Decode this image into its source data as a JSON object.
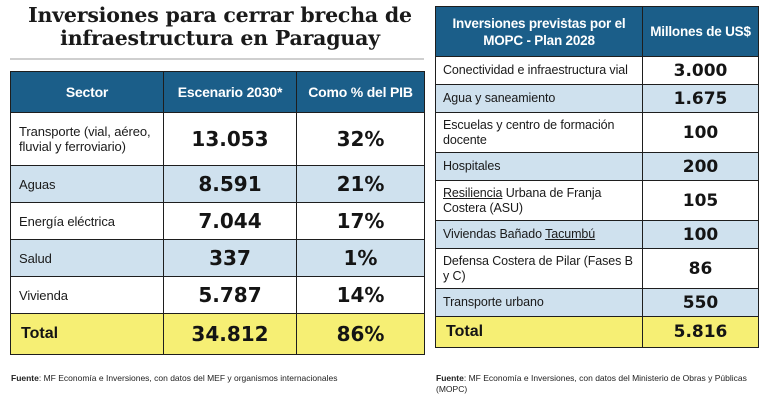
{
  "left": {
    "title": "Inversiones para cerrar brecha de infraestructura en Paraguay",
    "headers": [
      "Sector",
      "Escenario 2030*",
      "Como % del PIB"
    ],
    "rows": [
      {
        "sector": "Transporte (vial, aéreo, fluvial y ferroviario)",
        "escenario": "13.053",
        "pib": "32%"
      },
      {
        "sector": "Aguas",
        "escenario": "8.591",
        "pib": "21%"
      },
      {
        "sector": "Energía eléctrica",
        "escenario": "7.044",
        "pib": "17%"
      },
      {
        "sector": "Salud",
        "escenario": "337",
        "pib": "1%"
      },
      {
        "sector": "Vivienda",
        "escenario": "5.787",
        "pib": "14%"
      }
    ],
    "total": {
      "label": "Total",
      "escenario": "34.812",
      "pib": "86%"
    },
    "source": {
      "label": "Fuente",
      "text": ": MF Economía e Inversiones, con datos del MEF y organismos internacionales"
    }
  },
  "right": {
    "headers": [
      "Inversiones previstas por el MOPC - Plan 2028",
      "Millones de US$"
    ],
    "rows": [
      {
        "name": "Conectividad e infraestructura vial",
        "value": "3.000"
      },
      {
        "name": "Agua y saneamiento",
        "value": "1.675"
      },
      {
        "name": "Escuelas y centro de formación docente",
        "value": "100"
      },
      {
        "name": "Hospitales",
        "value": "200"
      },
      {
        "name_underlined": "Resiliencia",
        "name_rest": " Urbana de Franja Costera (ASU)",
        "value": "105"
      },
      {
        "name_plain": "Viviendas Bañado ",
        "name_underlined": "Tacumbú",
        "value": "100"
      },
      {
        "name": "Defensa Costera de Pilar (Fases B y C)",
        "value": "86"
      },
      {
        "name": "Transporte urbano",
        "value": "550"
      }
    ],
    "total": {
      "label": "Total",
      "value": "5.816"
    },
    "source": {
      "label": "Fuente",
      "text": ": MF Economía e Inversiones, con datos del Ministerio de Obras y Públicas (MOPC)"
    }
  },
  "colors": {
    "header_blue": "#1b5e89",
    "row_blue": "#cfe1ee",
    "total_yellow": "#f6ef74"
  }
}
